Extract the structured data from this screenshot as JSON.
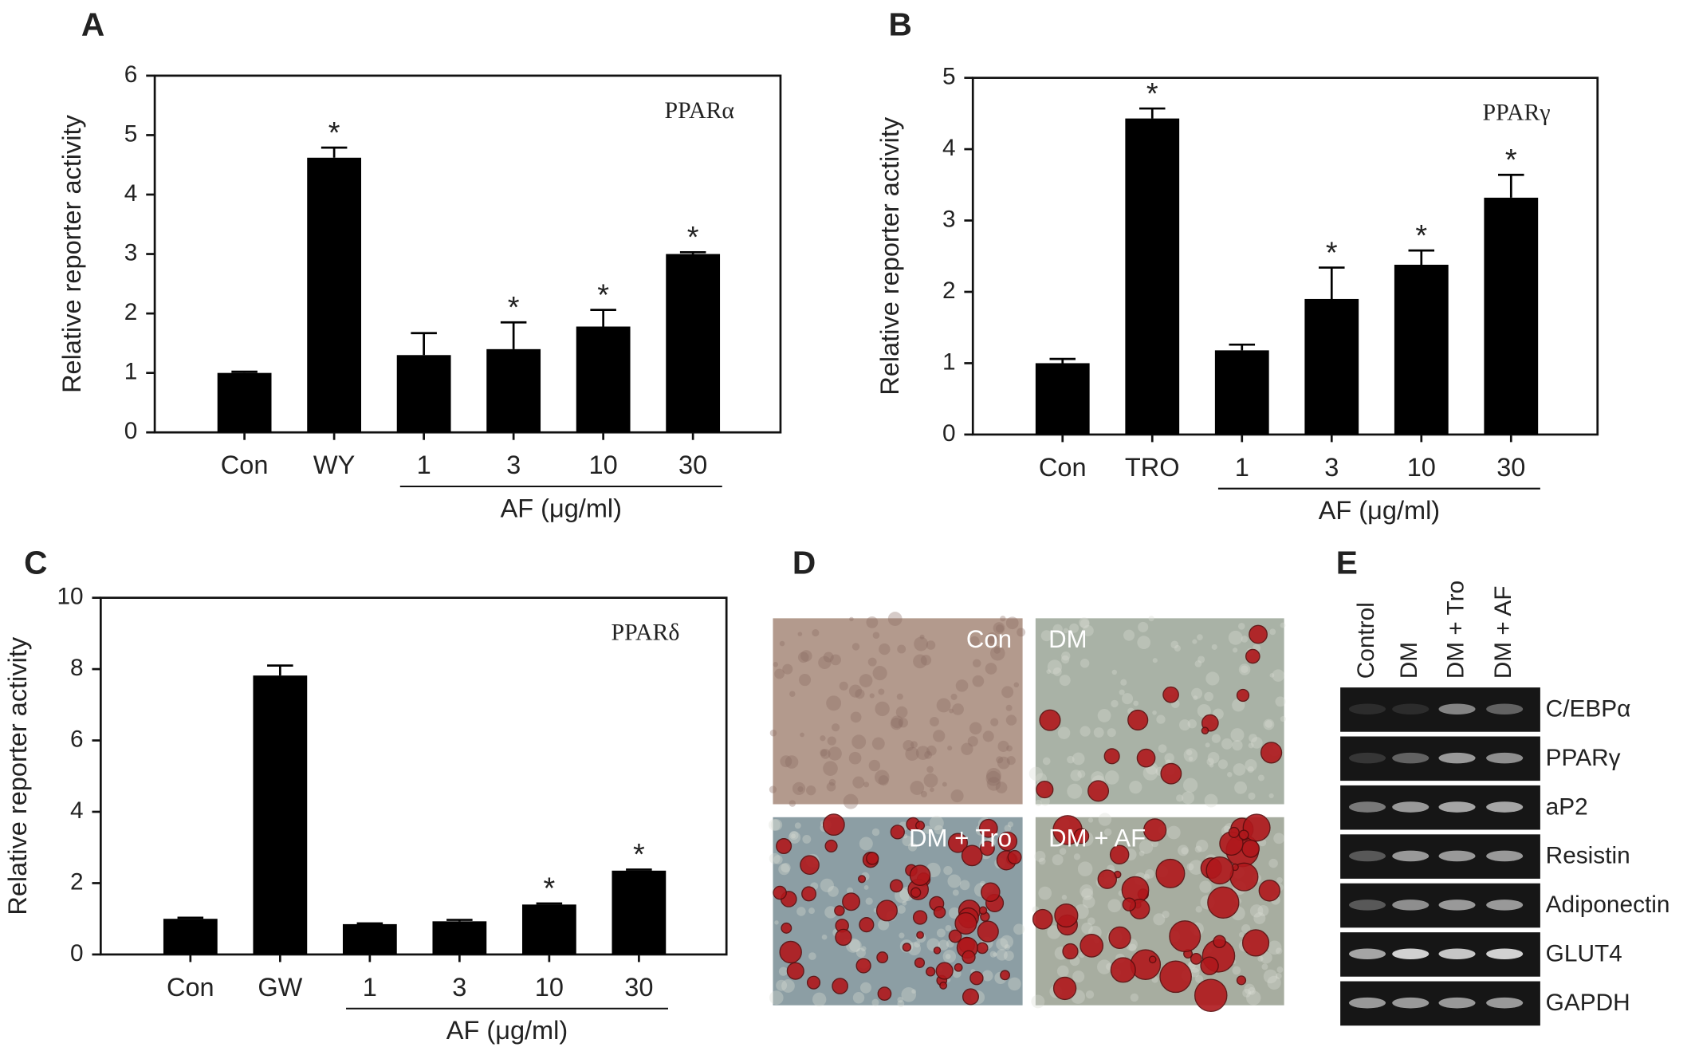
{
  "chart_data": [
    {
      "type": "bar",
      "panel": "A",
      "ylabel": "Relative  reporter  activity",
      "annotation": "PPARα",
      "categories": [
        "Con",
        "WY",
        "1",
        "3",
        "10",
        "30"
      ],
      "values": [
        1.0,
        4.62,
        1.3,
        1.4,
        1.78,
        3.0
      ],
      "errors": [
        0.02,
        0.17,
        0.37,
        0.45,
        0.28,
        0.03
      ],
      "significance": [
        null,
        "*",
        null,
        "*",
        "*",
        "*"
      ],
      "group_label": "AF (μg/ml)",
      "color": "#000000",
      "ylim": [
        0,
        6
      ],
      "yticks": [
        0,
        1,
        2,
        3,
        4,
        5,
        6
      ]
    },
    {
      "type": "bar",
      "panel": "B",
      "ylabel": "Relative  reporter  activity",
      "annotation": "PPARγ",
      "categories": [
        "Con",
        "TRO",
        "1",
        "3",
        "10",
        "30"
      ],
      "values": [
        1.0,
        4.43,
        1.18,
        1.9,
        2.38,
        3.32
      ],
      "errors": [
        0.06,
        0.14,
        0.08,
        0.44,
        0.2,
        0.32
      ],
      "significance": [
        null,
        "*",
        null,
        "*",
        "*",
        "*"
      ],
      "group_label": "AF (μg/ml)",
      "color": "#000000",
      "ylim": [
        0,
        5
      ],
      "yticks": [
        0,
        1,
        2,
        3,
        4,
        5
      ]
    },
    {
      "type": "bar",
      "panel": "C",
      "ylabel": "Relative  reporter  activity",
      "annotation": "PPARδ",
      "categories": [
        "Con",
        "GW",
        "1",
        "3",
        "10",
        "30"
      ],
      "values": [
        1.0,
        7.82,
        0.85,
        0.93,
        1.4,
        2.35
      ],
      "errors": [
        0.03,
        0.28,
        0.02,
        0.04,
        0.03,
        0.03
      ],
      "significance": [
        null,
        null,
        null,
        null,
        "*",
        "*"
      ],
      "group_label": "AF (μg/ml)",
      "color": "#000000",
      "ylim": [
        0,
        10
      ],
      "yticks": [
        0,
        2,
        4,
        6,
        8,
        10
      ]
    }
  ],
  "panel_d": {
    "panel": "D",
    "images": [
      "Con",
      "DM",
      "DM + Tro",
      "DM + AF"
    ]
  },
  "panel_e": {
    "panel": "E",
    "lanes": [
      "Control",
      "DM",
      "DM + Tro",
      "DM + AF"
    ],
    "genes": [
      "C/EBPα",
      "PPARγ",
      "aP2",
      "Resistin",
      "Adiponectin",
      "GLUT4",
      "GAPDH"
    ]
  }
}
